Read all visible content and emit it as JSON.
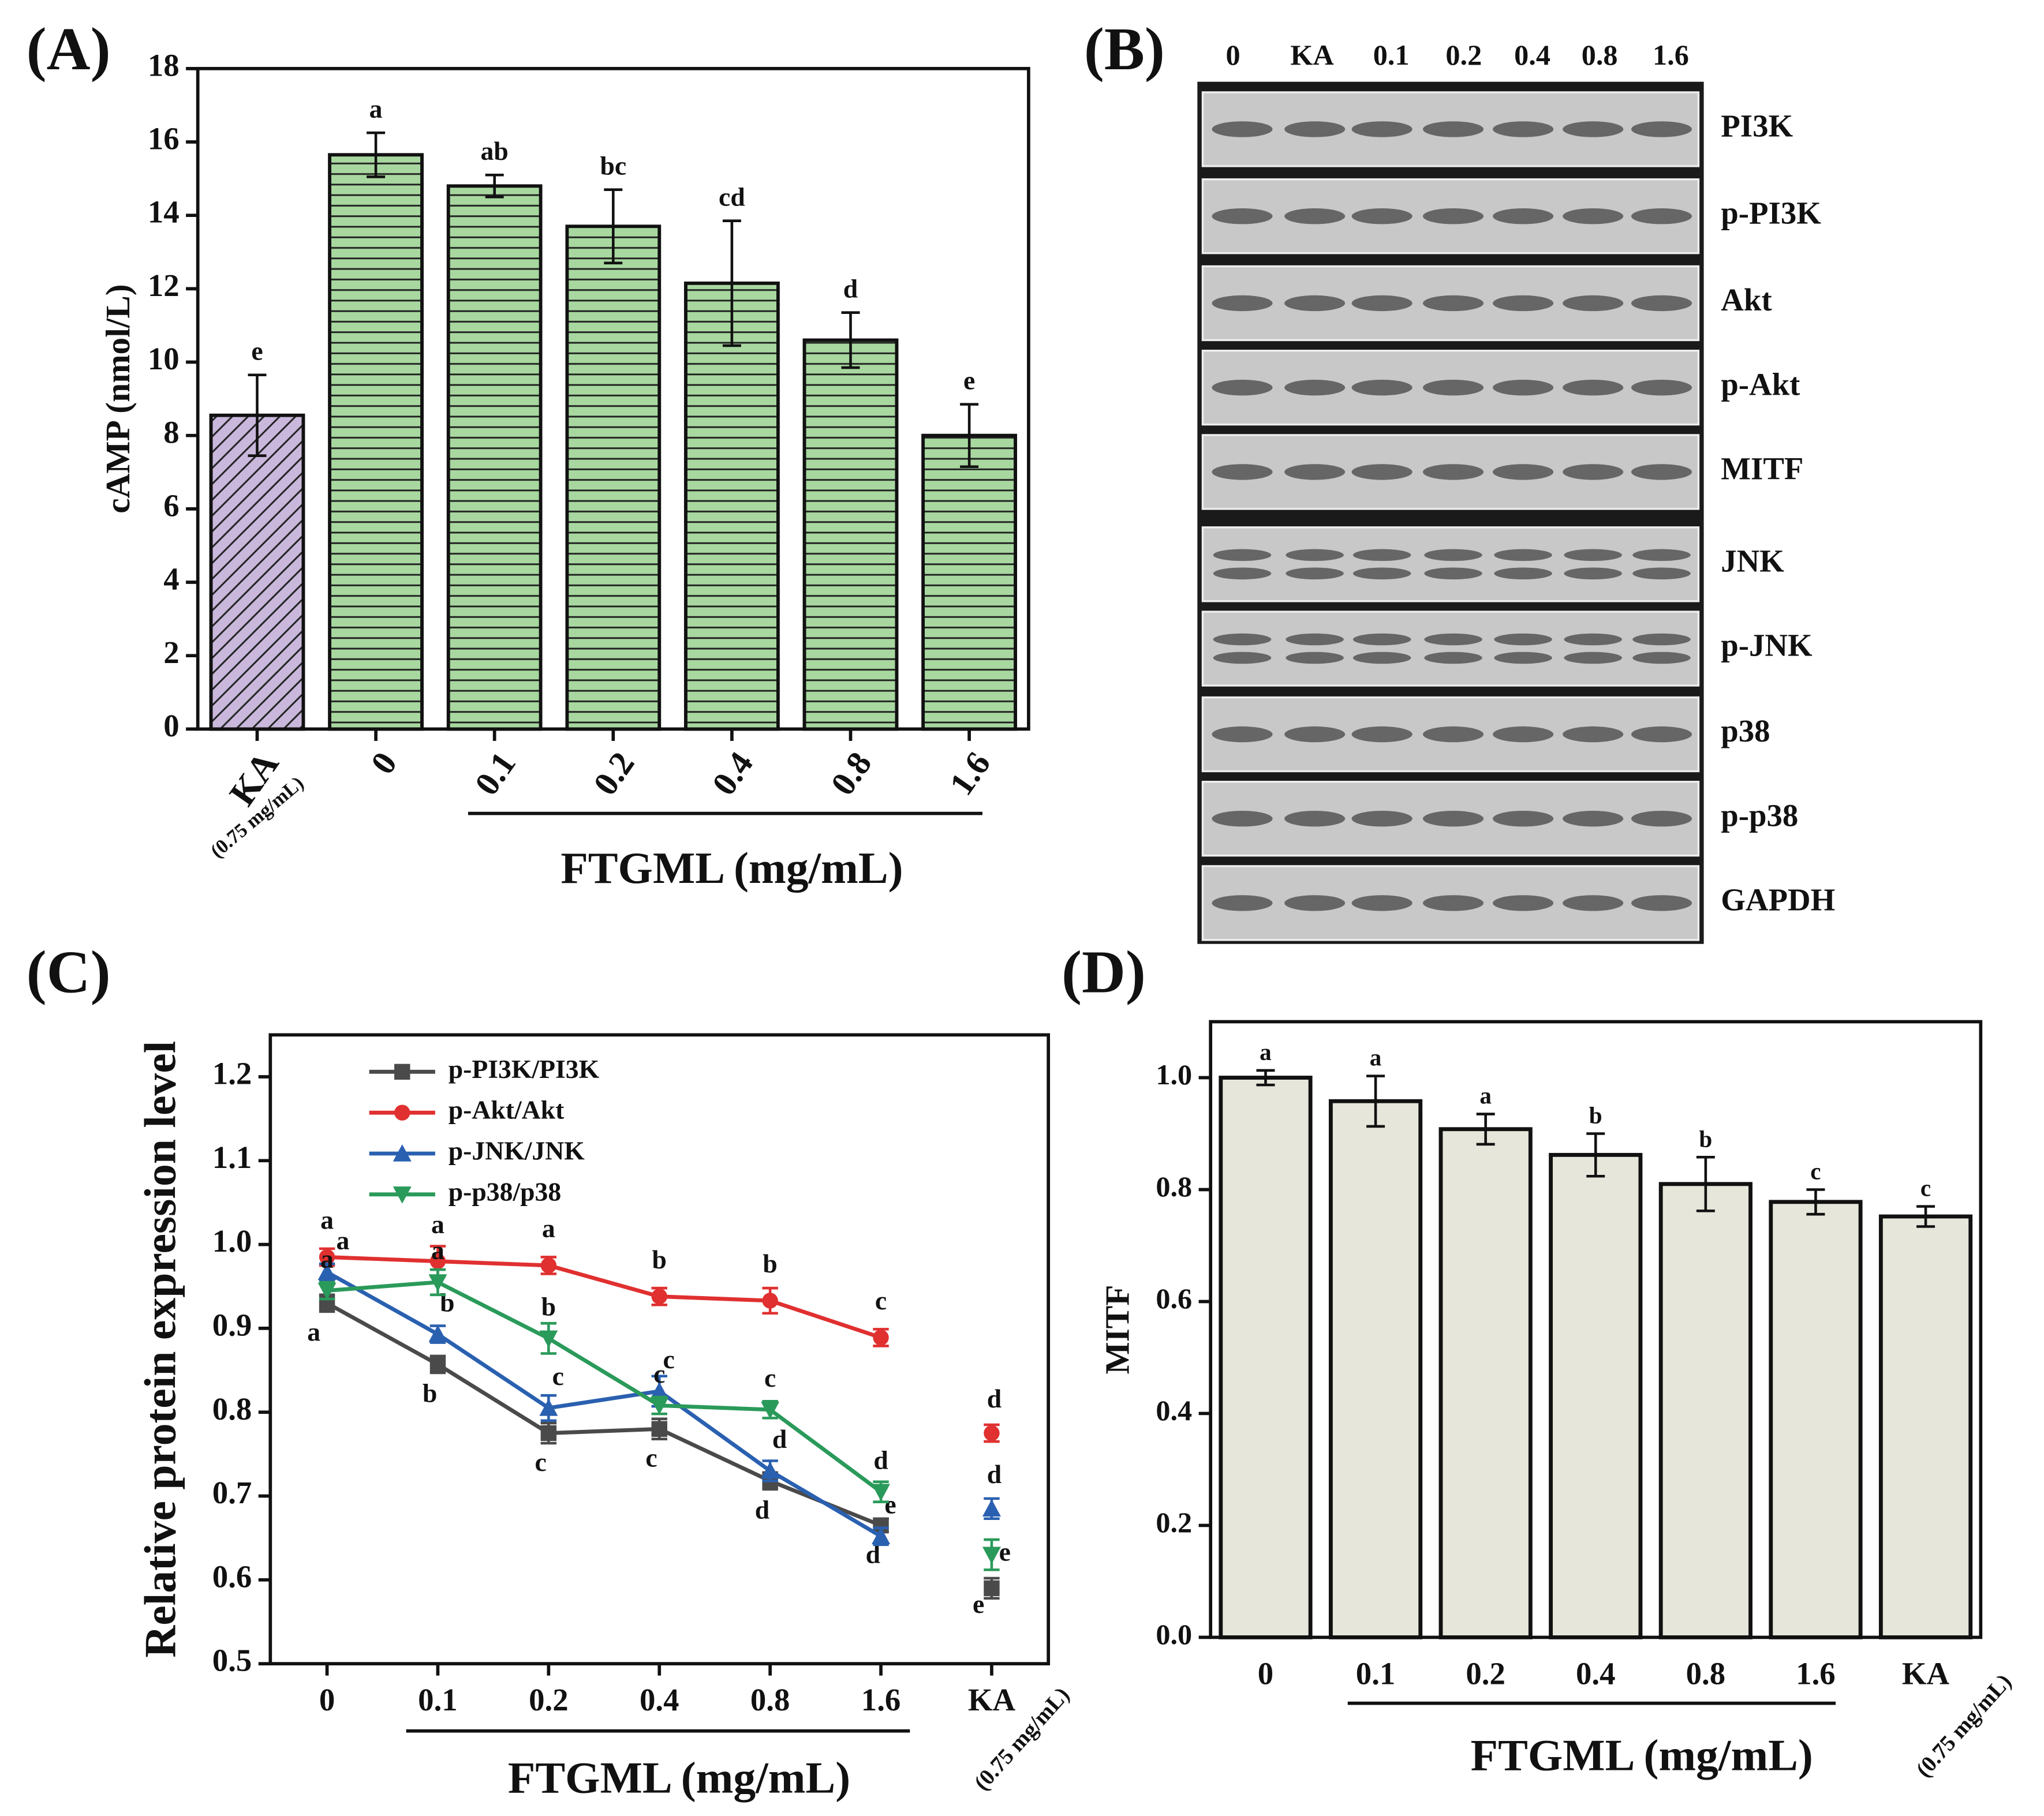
{
  "chart_data": [
    {
      "type": "bar",
      "panel_label": "(A)",
      "ylabel": "cAMP (nmol/L)",
      "xlabel": "FTGML (mg/mL)",
      "categories": [
        "KA",
        "0",
        "0.1",
        "0.2",
        "0.4",
        "0.8",
        "1.6"
      ],
      "ka_dose": "(0.75 mg/mL)",
      "values": [
        8.55,
        15.65,
        14.8,
        13.7,
        12.15,
        10.6,
        8.0
      ],
      "errors": [
        1.1,
        0.6,
        0.3,
        1.0,
        1.7,
        0.75,
        0.85
      ],
      "letters": [
        "e",
        "a",
        "ab",
        "bc",
        "cd",
        "d",
        "e"
      ],
      "colors": [
        "#c9b8dc",
        "#a8d8a0",
        "#a8d8a0",
        "#a8d8a0",
        "#a8d8a0",
        "#a8d8a0",
        "#a8d8a0"
      ],
      "hatches": [
        "diagonal",
        "horizontal",
        "horizontal",
        "horizontal",
        "horizontal",
        "horizontal",
        "horizontal"
      ],
      "ylim": [
        0,
        18
      ],
      "yticks": [
        0,
        2,
        4,
        6,
        8,
        10,
        12,
        14,
        16,
        18
      ]
    },
    {
      "type": "line",
      "panel_label": "(C)",
      "ylabel": "Relative protein expression level",
      "xlabel": "FTGML (mg/mL)",
      "categories": [
        "0",
        "0.1",
        "0.2",
        "0.4",
        "0.8",
        "1.6"
      ],
      "ka_category": "KA",
      "ka_dose": "(0.75 mg/mL)",
      "ylim": [
        0.5,
        1.25
      ],
      "yticks": [
        0.5,
        0.6,
        0.7,
        0.8,
        0.9,
        {
          "value": 1.0,
          "label": "1.0"
        },
        1.1,
        1.2
      ],
      "series": [
        {
          "name": "p-PI3K/PI3K",
          "color": "#4a4a4a",
          "marker": "square",
          "values": [
            0.93,
            0.857,
            0.775,
            0.78,
            0.718,
            0.665
          ],
          "errors": [
            0.01,
            0.01,
            0.012,
            0.012,
            0.01,
            0.008
          ],
          "letters": [
            "a",
            "b",
            "c",
            "c",
            "d",
            "d"
          ],
          "ka_value": 0.59,
          "ka_error": 0.012,
          "ka_letter": "e"
        },
        {
          "name": "p-Akt/Akt",
          "color": "#e03030",
          "marker": "circle",
          "values": [
            0.985,
            0.98,
            0.975,
            0.938,
            0.933,
            0.889
          ],
          "errors": [
            0.01,
            0.018,
            0.01,
            0.01,
            0.015,
            0.01
          ],
          "letters": [
            "a",
            "a",
            "a",
            "b",
            "b",
            "c"
          ],
          "ka_value": 0.775,
          "ka_error": 0.01,
          "ka_letter": "d"
        },
        {
          "name": "p-JNK/JNK",
          "color": "#2a60b0",
          "marker": "triangle-up",
          "values": [
            0.967,
            0.893,
            0.805,
            0.825,
            0.73,
            0.652
          ],
          "errors": [
            0.01,
            0.01,
            0.015,
            0.018,
            0.012,
            0.01
          ],
          "letters": [
            "a",
            "b",
            "c",
            "c",
            "d",
            "e"
          ],
          "ka_value": 0.685,
          "ka_error": 0.012,
          "ka_letter": "d"
        },
        {
          "name": "p-p38/p38",
          "color": "#2a9a5a",
          "marker": "triangle-down",
          "values": [
            0.945,
            0.955,
            0.888,
            0.808,
            0.803,
            0.705
          ],
          "errors": [
            0.01,
            0.015,
            0.018,
            0.01,
            0.01,
            0.012
          ],
          "letters": [
            "a",
            "a",
            "b",
            "c",
            "c",
            "d"
          ],
          "ka_value": 0.63,
          "ka_error": 0.018,
          "ka_letter": "e"
        }
      ]
    },
    {
      "type": "bar",
      "panel_label": "(D)",
      "ylabel": "MITF",
      "xlabel": "FTGML (mg/mL)",
      "categories": [
        "0",
        "0.1",
        "0.2",
        "0.4",
        "0.8",
        "1.6",
        "KA"
      ],
      "ka_dose": "(0.75 mg/mL)",
      "values": [
        1.0,
        0.958,
        0.908,
        0.862,
        0.81,
        0.778,
        0.752
      ],
      "errors": [
        0.013,
        0.045,
        0.027,
        0.038,
        0.048,
        0.022,
        0.018
      ],
      "letters": [
        "a",
        "a",
        "a",
        "b",
        "b",
        "c",
        "c"
      ],
      "colors": [
        "#e6e6da",
        "#e6e6da",
        "#e6e6da",
        "#e6e6da",
        "#e6e6da",
        "#e6e6da",
        "#e6e6da"
      ],
      "hatches": [
        "none",
        "none",
        "none",
        "none",
        "none",
        "none",
        "none"
      ],
      "ylim": [
        0,
        1.1
      ],
      "yticks": [
        {
          "value": 0,
          "label": "0.0"
        },
        0.2,
        0.4,
        0.6,
        0.8,
        {
          "value": 1.0,
          "label": "1.0"
        }
      ]
    }
  ],
  "blot": {
    "panel_label": "(B)",
    "lanes": [
      "0",
      "KA",
      "0.1",
      "0.2",
      "0.4",
      "0.8",
      "1.6"
    ],
    "proteins": [
      "PI3K",
      "p-PI3K",
      "Akt",
      "p-Akt",
      "MITF",
      "JNK",
      "p-JNK",
      "p38",
      "p-p38",
      "GAPDH"
    ]
  }
}
